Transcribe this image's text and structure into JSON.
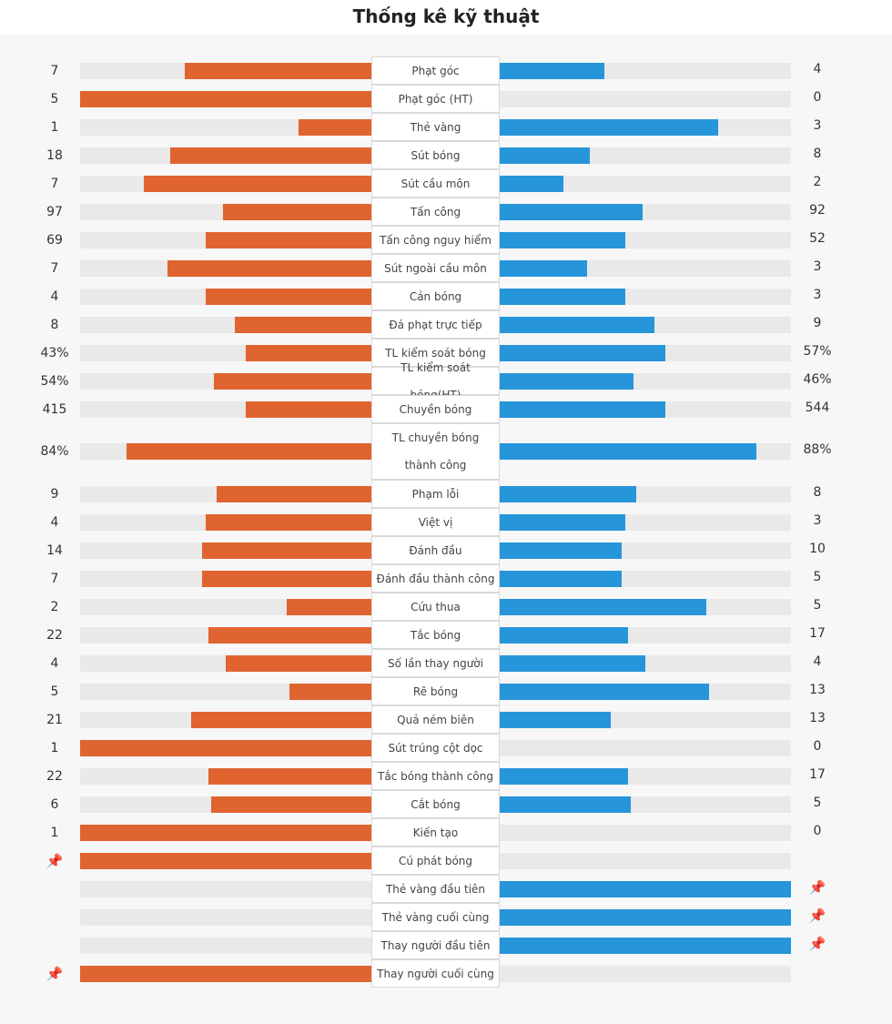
{
  "title": "Thống kê kỹ thuật",
  "colors": {
    "home": "#e06430",
    "away": "#2795da",
    "track": "#e9e9e9"
  },
  "stats": [
    {
      "label": "Phạt góc",
      "home": "7",
      "away": "4",
      "home_share": 0.64,
      "away_share": 0.36
    },
    {
      "label": "Phạt góc (HT)",
      "home": "5",
      "away": "0",
      "home_share": 1.0,
      "away_share": 0.0
    },
    {
      "label": "Thẻ vàng",
      "home": "1",
      "away": "3",
      "home_share": 0.25,
      "away_share": 0.75
    },
    {
      "label": "Sút bóng",
      "home": "18",
      "away": "8",
      "home_share": 0.69,
      "away_share": 0.31
    },
    {
      "label": "Sút cầu môn",
      "home": "7",
      "away": "2",
      "home_share": 0.78,
      "away_share": 0.22
    },
    {
      "label": "Tấn công",
      "home": "97",
      "away": "92",
      "home_share": 0.51,
      "away_share": 0.49
    },
    {
      "label": "Tấn công nguy hiểm",
      "home": "69",
      "away": "52",
      "home_share": 0.57,
      "away_share": 0.43
    },
    {
      "label": "Sút ngoài cầu môn",
      "home": "7",
      "away": "3",
      "home_share": 0.7,
      "away_share": 0.3
    },
    {
      "label": "Cản bóng",
      "home": "4",
      "away": "3",
      "home_share": 0.57,
      "away_share": 0.43
    },
    {
      "label": "Đá phạt trực tiếp",
      "home": "8",
      "away": "9",
      "home_share": 0.47,
      "away_share": 0.53
    },
    {
      "label": "TL kiểm soát bóng",
      "home": "43%",
      "away": "57%",
      "home_share": 0.43,
      "away_share": 0.57
    },
    {
      "label": "TL kiểm soát bóng(HT)",
      "home": "54%",
      "away": "46%",
      "home_share": 0.54,
      "away_share": 0.46
    },
    {
      "label": "Chuyền bóng",
      "home": "415",
      "away": "544",
      "home_share": 0.43,
      "away_share": 0.57
    },
    {
      "label": "TL chuyền bóng thành công",
      "home": "84%",
      "away": "88%",
      "home_share": 0.84,
      "away_share": 0.88,
      "tall": true
    },
    {
      "label": "Phạm lỗi",
      "home": "9",
      "away": "8",
      "home_share": 0.53,
      "away_share": 0.47
    },
    {
      "label": "Việt vị",
      "home": "4",
      "away": "3",
      "home_share": 0.57,
      "away_share": 0.43
    },
    {
      "label": "Đánh đầu",
      "home": "14",
      "away": "10",
      "home_share": 0.58,
      "away_share": 0.42
    },
    {
      "label": "Đánh đầu thành công",
      "home": "7",
      "away": "5",
      "home_share": 0.58,
      "away_share": 0.42
    },
    {
      "label": "Cứu thua",
      "home": "2",
      "away": "5",
      "home_share": 0.29,
      "away_share": 0.71
    },
    {
      "label": "Tắc bóng",
      "home": "22",
      "away": "17",
      "home_share": 0.56,
      "away_share": 0.44
    },
    {
      "label": "Số lần thay người",
      "home": "4",
      "away": "4",
      "home_share": 0.5,
      "away_share": 0.5
    },
    {
      "label": "Rê bóng",
      "home": "5",
      "away": "13",
      "home_share": 0.28,
      "away_share": 0.72
    },
    {
      "label": "Quả ném biên",
      "home": "21",
      "away": "13",
      "home_share": 0.62,
      "away_share": 0.38
    },
    {
      "label": "Sút trúng cột dọc",
      "home": "1",
      "away": "0",
      "home_share": 1.0,
      "away_share": 0.0
    },
    {
      "label": "Tắc bóng thành công",
      "home": "22",
      "away": "17",
      "home_share": 0.56,
      "away_share": 0.44
    },
    {
      "label": "Cắt bóng",
      "home": "6",
      "away": "5",
      "home_share": 0.55,
      "away_share": 0.45
    },
    {
      "label": "Kiến tạo",
      "home": "1",
      "away": "0",
      "home_share": 1.0,
      "away_share": 0.0
    },
    {
      "label": "Cú phát bóng",
      "home_icon": "pin-icon",
      "home_share": 1.0,
      "away_share": 0.0
    },
    {
      "label": "Thẻ vàng đầu tiên",
      "away_icon": "pin-icon",
      "home_share": 0.0,
      "away_share": 1.0
    },
    {
      "label": "Thẻ vàng cuối cùng",
      "away_icon": "pin-icon",
      "home_share": 0.0,
      "away_share": 1.0
    },
    {
      "label": "Thay người đầu tiên",
      "away_icon": "pin-icon",
      "home_share": 0.0,
      "away_share": 1.0
    },
    {
      "label": "Thay người cuối cùng",
      "home_icon": "pin-icon",
      "home_share": 1.0,
      "away_share": 0.0
    }
  ]
}
